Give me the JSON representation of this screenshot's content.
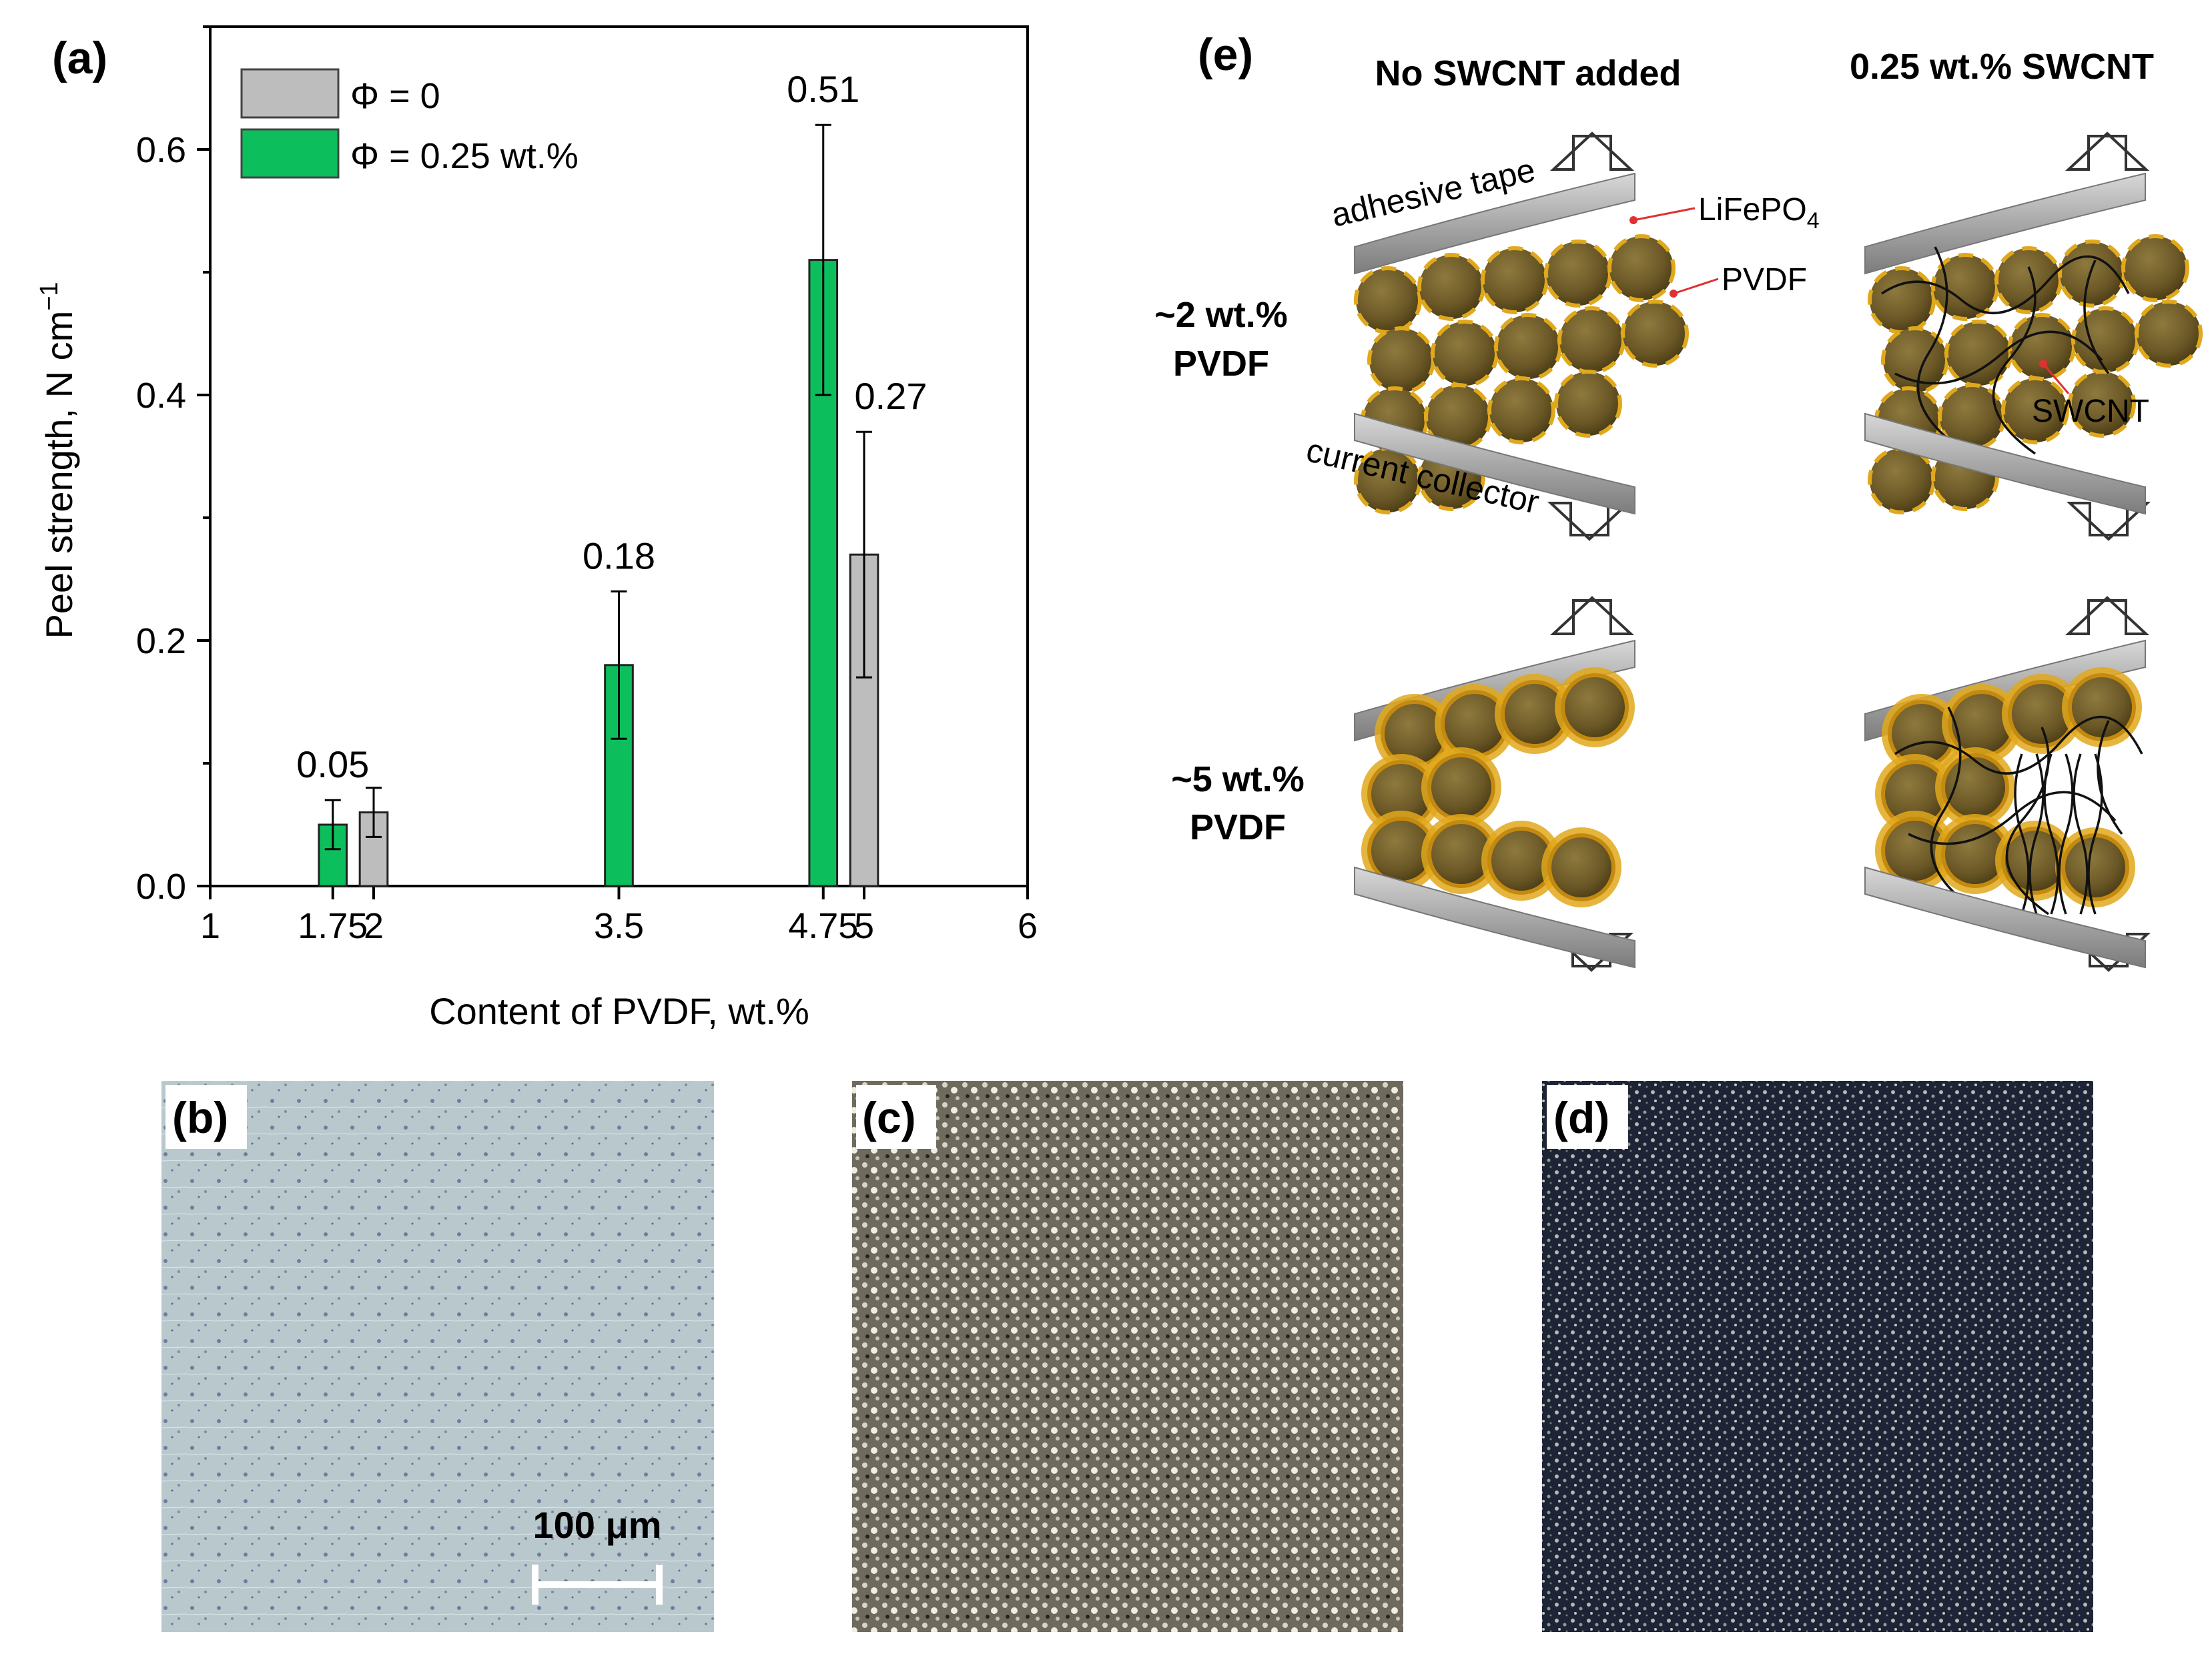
{
  "panels": {
    "a": "(a)",
    "b": "(b)",
    "c": "(c)",
    "d": "(d)",
    "e": "(e)"
  },
  "colors": {
    "green": "#0dbf5c",
    "gray": "#bdbdbd",
    "bead": "#6b5a2a",
    "bead_light": "#8a7438",
    "pvdf": "#e0a81c",
    "pvdf_dark": "#c48a10",
    "tape": "#9a9a9a",
    "accent_red": "#e03030"
  },
  "chart_data": {
    "type": "bar",
    "xlabel": "Content of PVDF, wt.%",
    "ylabel": "Peel strength, N cm",
    "ylabel_sup": "−1",
    "xlim": [
      1,
      6
    ],
    "ylim": [
      0,
      0.7
    ],
    "x_ticks": [
      {
        "x": 1,
        "label": "1"
      },
      {
        "x": 1.75,
        "label": "1.75"
      },
      {
        "x": 2,
        "label": "2"
      },
      {
        "x": 3.5,
        "label": "3.5"
      },
      {
        "x": 4.75,
        "label": "4.75"
      },
      {
        "x": 5,
        "label": "5"
      },
      {
        "x": 6,
        "label": "6"
      }
    ],
    "y_ticks": [
      {
        "y": 0.0,
        "label": "0.0"
      },
      {
        "y": 0.2,
        "label": "0.2"
      },
      {
        "y": 0.4,
        "label": "0.4"
      },
      {
        "y": 0.6,
        "label": "0.6"
      }
    ],
    "y_minor_ticks": [
      0.1,
      0.3,
      0.5,
      0.7
    ],
    "legend_position": "top-left",
    "series": [
      {
        "name": "Φ = 0",
        "color": "#bdbdbd",
        "points": [
          {
            "x": 2,
            "y": 0.06,
            "err": 0.02,
            "label": ""
          },
          {
            "x": 5,
            "y": 0.27,
            "err": 0.1,
            "label": "0.27"
          }
        ]
      },
      {
        "name": "Φ = 0.25 wt.%",
        "color": "#0dbf5c",
        "points": [
          {
            "x": 1.75,
            "y": 0.05,
            "err": 0.02,
            "label": "0.05"
          },
          {
            "x": 3.5,
            "y": 0.18,
            "err": 0.06,
            "label": "0.18"
          },
          {
            "x": 4.75,
            "y": 0.51,
            "err": 0.11,
            "label": "0.51"
          }
        ]
      }
    ]
  },
  "micrographs": {
    "scalebar": "100 μm"
  },
  "schematic": {
    "col_no": "No SWCNT added",
    "col_swcnt": "0.25 wt.% SWCNT",
    "row1_line1": "~2 wt.%",
    "row1_line2": "PVDF",
    "row2_line1": "~5 wt.%",
    "row2_line2": "PVDF",
    "tape_label": "adhesive tape",
    "collector_label": "current collector",
    "lfp_label": "LiFePO",
    "lfp_sub": "4",
    "pvdf_label": "PVDF",
    "swcnt_label": "SWCNT"
  }
}
